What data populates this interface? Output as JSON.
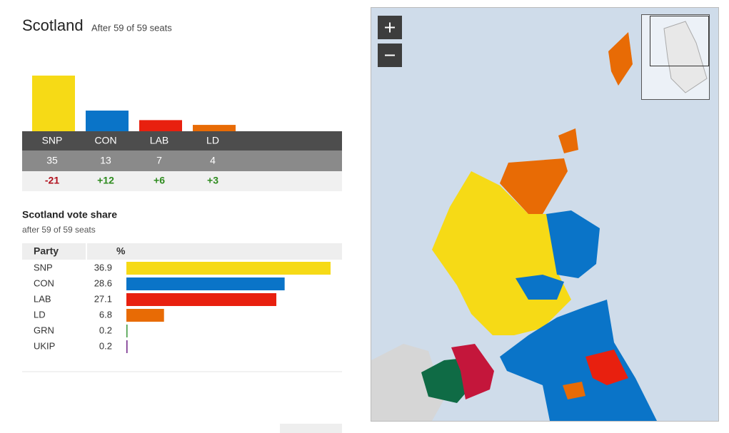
{
  "header": {
    "title": "Scotland",
    "subtitle": "After 59 of 59 seats"
  },
  "seats": {
    "type": "bar",
    "categories": [
      "SNP",
      "CON",
      "LAB",
      "LD"
    ],
    "values": [
      35,
      13,
      7,
      4
    ],
    "change": [
      -21,
      12,
      6,
      3
    ],
    "change_labels": [
      "-21",
      "+12",
      "+6",
      "+3"
    ],
    "colors": [
      "#f6da16",
      "#0a74c8",
      "#e8200f",
      "#e86b05"
    ]
  },
  "vote_share": {
    "type": "bar",
    "title": "Scotland vote share",
    "subtitle": "after 59 of 59 seats",
    "columns": [
      "Party",
      "%"
    ],
    "categories": [
      "SNP",
      "CON",
      "LAB",
      "LD",
      "GRN",
      "UKIP"
    ],
    "values": [
      36.9,
      28.6,
      27.1,
      6.8,
      0.2,
      0.2
    ],
    "colors": [
      "#f6da16",
      "#0a74c8",
      "#e8200f",
      "#e86b05",
      "#3f9a3f",
      "#722889"
    ]
  }
}
